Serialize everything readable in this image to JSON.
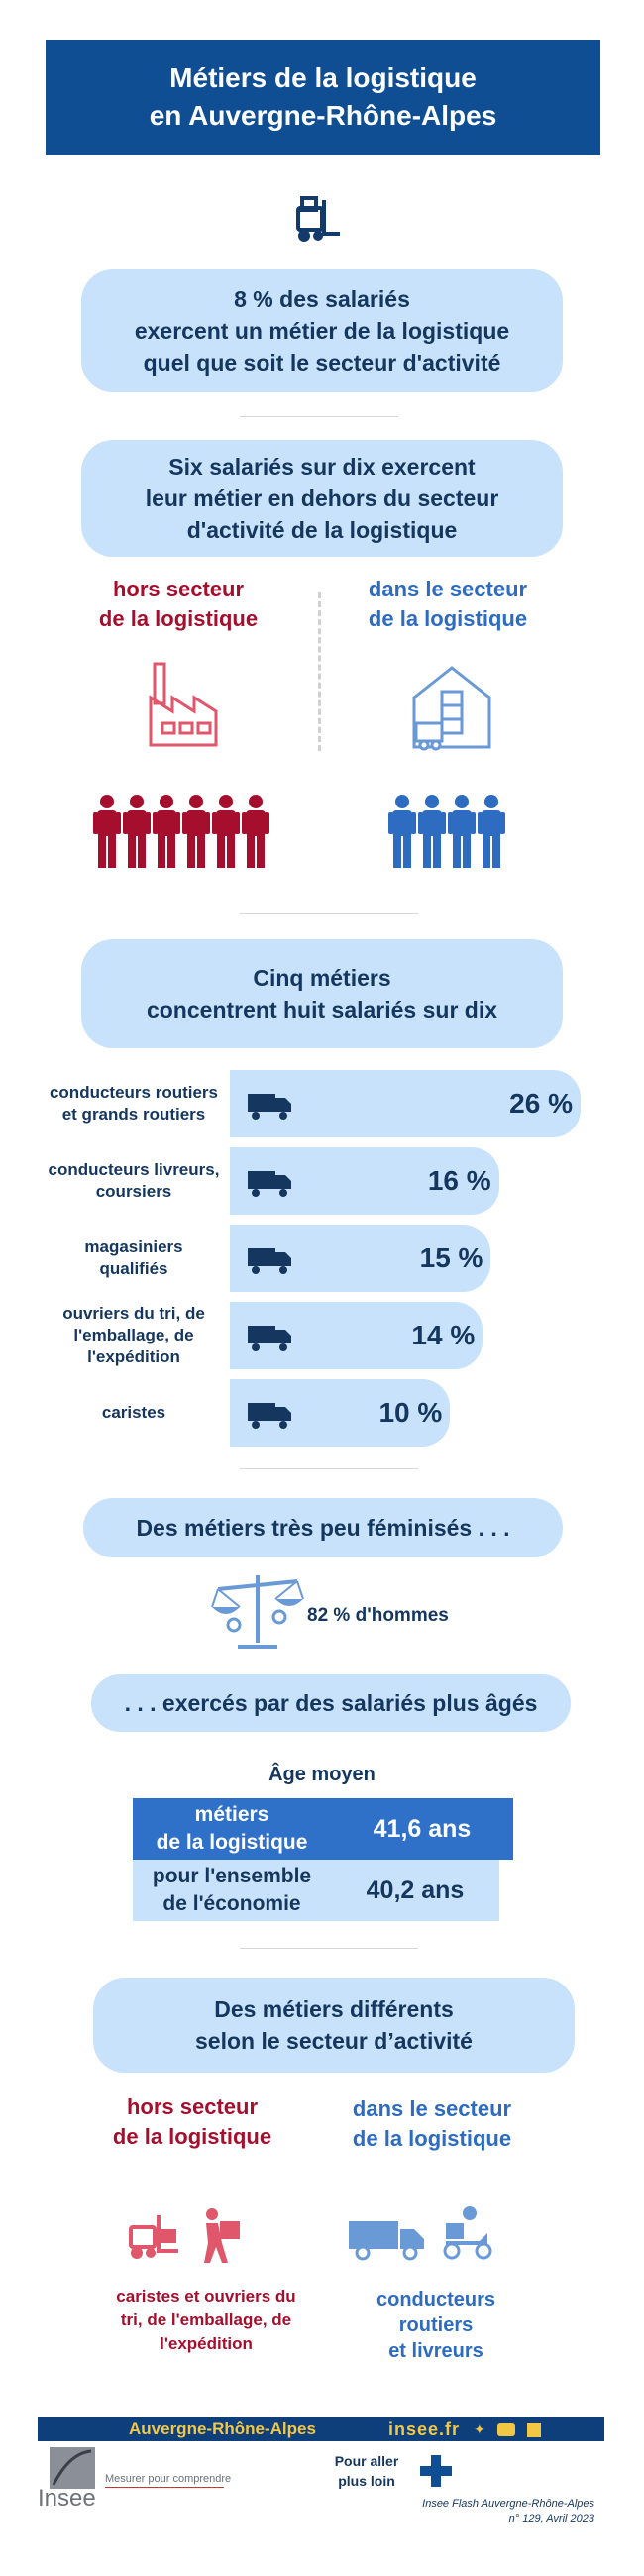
{
  "header": {
    "line1": "Métiers de la logistique",
    "line2": "en Auvergne-Rhône-Alpes"
  },
  "intro": {
    "line1": "8 % des salariés",
    "line2": "exercent un métier de la logistique",
    "line3": "quel que soit le secteur d'activité"
  },
  "section1": {
    "title": {
      "line1": "Six salariés sur dix exercent",
      "line2": "leur métier en dehors du secteur",
      "line3": "d'activité de la logistique"
    },
    "left_label": {
      "line1": "hors secteur",
      "line2": "de la logistique"
    },
    "right_label": {
      "line1": "dans le secteur",
      "line2": "de la logistique"
    },
    "left_people": 6,
    "right_people": 4,
    "colors": {
      "left": "#a50f2d",
      "right": "#2d6cc0"
    }
  },
  "section2": {
    "title": {
      "line1": "Cinq métiers",
      "line2": "concentrent huit salariés sur dix"
    },
    "jobs": [
      {
        "label1": "conducteurs routiers",
        "label2": "et grands routiers",
        "label3": "",
        "value": 26,
        "display": "26 %",
        "icon": "truck-icon"
      },
      {
        "label1": "conducteurs livreurs,",
        "label2": "coursiers",
        "label3": "",
        "value": 16,
        "display": "16 %",
        "icon": "scooter-delivery-icon"
      },
      {
        "label1": "magasiniers",
        "label2": "qualifiés",
        "label3": "",
        "value": 15,
        "display": "15 %",
        "icon": "storekeeper-icon"
      },
      {
        "label1": "ouvriers du tri, de",
        "label2": "l'emballage, de",
        "label3": "l'expédition",
        "value": 14,
        "display": "14 %",
        "icon": "worker-carrying-box-icon"
      },
      {
        "label1": "caristes",
        "label2": "",
        "label3": "",
        "value": 10,
        "display": "10 %",
        "icon": "forklift-icon"
      }
    ]
  },
  "section3": {
    "title": "Des métiers très peu féminisés . . .",
    "stat": "82 % d'hommes"
  },
  "section4": {
    "title": ". . .  exercés par des salariés plus âgés",
    "subtitle": "Âge moyen",
    "rows": [
      {
        "label1": "métiers",
        "label2": "de la logistique",
        "value": "41,6 ans"
      },
      {
        "label1": "pour l'ensemble",
        "label2": "de l'économie",
        "value": "40,2 ans"
      }
    ]
  },
  "section5": {
    "title": {
      "line1": "Des métiers différents",
      "line2": "selon le secteur d’activité"
    },
    "left_label": {
      "line1": "hors secteur",
      "line2": "de la logistique"
    },
    "right_label": {
      "line1": "dans le secteur",
      "line2": "de la logistique"
    },
    "left_text": {
      "line1": "caristes et ouvriers du",
      "line2": "tri, de l'emballage, de",
      "line3": "l'expédition"
    },
    "right_text": {
      "line1": "conducteurs",
      "line2": "routiers",
      "line3": "et livreurs"
    }
  },
  "footer": {
    "region": "Auvergne-Rhône-Alpes",
    "site": "insee.fr",
    "logo": "Insee",
    "tagline": "Mesurer pour comprendre",
    "more1": "Pour aller",
    "more2": "plus loin",
    "pub1": "Insee Flash Auvergne-Rhône-Alpes",
    "pub2": "n° 129, Avril 2023"
  }
}
